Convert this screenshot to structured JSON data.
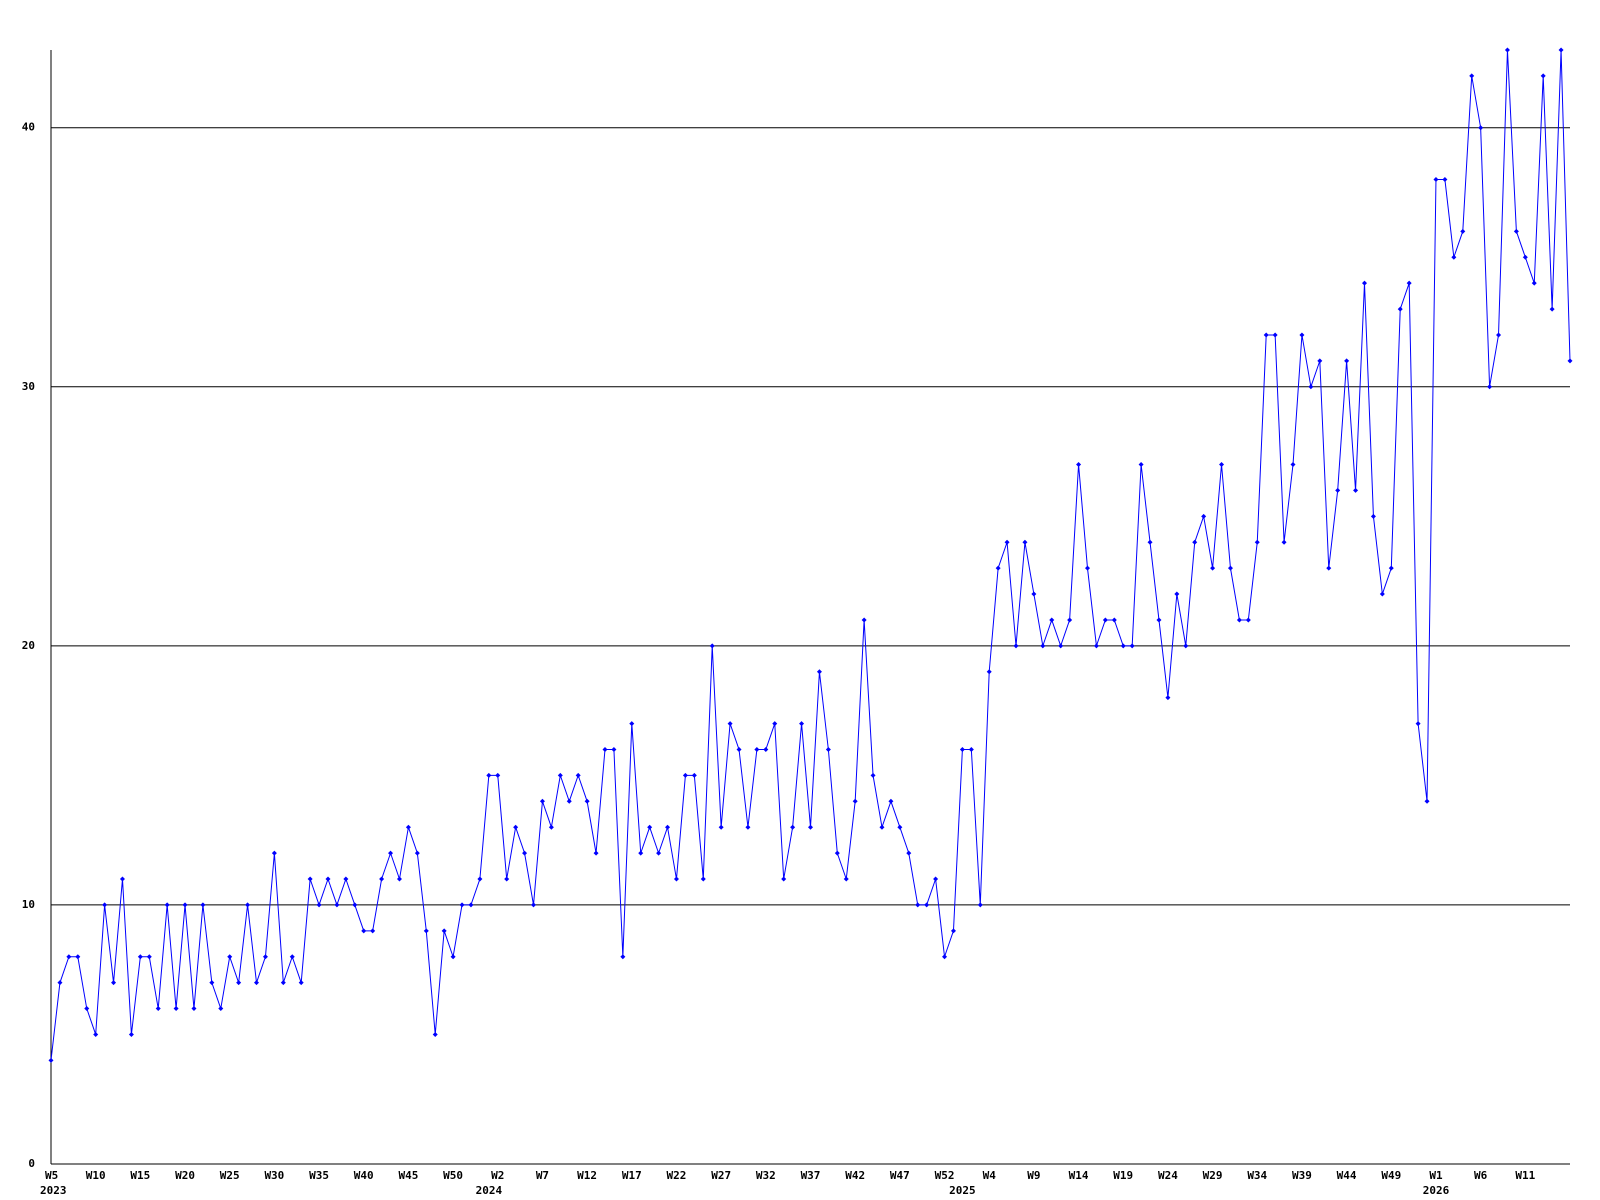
{
  "chart_data": {
    "type": "line",
    "color": "#0000ff",
    "grid": true,
    "ylim": [
      0,
      43
    ],
    "yticks": [
      0,
      10,
      20,
      30,
      40
    ],
    "categories": [
      "W5",
      null,
      null,
      null,
      null,
      "W10",
      null,
      null,
      null,
      null,
      "W15",
      null,
      null,
      null,
      null,
      "W20",
      null,
      null,
      null,
      null,
      "W25",
      null,
      null,
      null,
      null,
      "W30",
      null,
      null,
      null,
      null,
      "W35",
      null,
      null,
      null,
      null,
      "W40",
      null,
      null,
      null,
      null,
      "W45",
      null,
      null,
      null,
      null,
      "W50",
      null,
      null,
      null,
      null,
      "W2",
      null,
      null,
      null,
      null,
      "W7",
      null,
      null,
      null,
      null,
      "W12",
      null,
      null,
      null,
      null,
      "W17",
      null,
      null,
      null,
      null,
      "W22",
      null,
      null,
      null,
      null,
      "W27",
      null,
      null,
      null,
      null,
      "W32",
      null,
      null,
      null,
      null,
      "W37",
      null,
      null,
      null,
      null,
      "W42",
      null,
      null,
      null,
      null,
      "W47",
      null,
      null,
      null,
      null,
      "W52",
      null,
      null,
      null,
      null,
      "W4",
      null,
      null,
      null,
      null,
      "W9",
      null,
      null,
      null,
      null,
      "W14",
      null,
      null,
      null,
      null,
      "W19",
      null,
      null,
      null,
      null,
      "W24",
      null,
      null,
      null,
      null,
      "W29",
      null,
      null,
      null,
      null,
      "W34",
      null,
      null,
      null,
      null,
      "W39",
      null,
      null,
      null,
      null,
      "W44",
      null,
      null,
      null,
      null,
      "W49",
      null,
      null,
      null,
      null,
      "W1",
      null,
      null,
      null,
      null,
      "W6",
      null,
      null,
      null,
      null,
      "W11",
      null,
      null,
      null,
      null,
      null
    ],
    "category_years": [
      "2023",
      null,
      null,
      null,
      null,
      null,
      null,
      null,
      null,
      null,
      null,
      null,
      null,
      null,
      null,
      null,
      null,
      null,
      null,
      null,
      null,
      null,
      null,
      null,
      null,
      null,
      null,
      null,
      null,
      null,
      null,
      null,
      null,
      null,
      null,
      null,
      null,
      null,
      null,
      null,
      null,
      null,
      null,
      null,
      null,
      null,
      null,
      null,
      null,
      "2024",
      null,
      null,
      null,
      null,
      null,
      null,
      null,
      null,
      null,
      null,
      null,
      null,
      null,
      null,
      null,
      null,
      null,
      null,
      null,
      null,
      null,
      null,
      null,
      null,
      null,
      null,
      null,
      null,
      null,
      null,
      null,
      null,
      null,
      null,
      null,
      null,
      null,
      null,
      null,
      null,
      null,
      null,
      null,
      null,
      null,
      null,
      null,
      null,
      null,
      null,
      null,
      null,
      "2025",
      null,
      null,
      null,
      null,
      null,
      null,
      null,
      null,
      null,
      null,
      null,
      null,
      null,
      null,
      null,
      null,
      null,
      null,
      null,
      null,
      null,
      null,
      null,
      null,
      null,
      null,
      null,
      null,
      null,
      null,
      null,
      null,
      null,
      null,
      null,
      null,
      null,
      null,
      null,
      null,
      null,
      null,
      null,
      null,
      null,
      null,
      null,
      null,
      null,
      null,
      null,
      null,
      "2026",
      null,
      null,
      null,
      null,
      null,
      null,
      null,
      null,
      null,
      null,
      null,
      null,
      null,
      null,
      null
    ],
    "values": [
      4,
      7,
      8,
      8,
      6,
      5,
      10,
      7,
      11,
      5,
      8,
      8,
      6,
      10,
      6,
      10,
      6,
      10,
      7,
      6,
      8,
      7,
      10,
      7,
      8,
      12,
      7,
      8,
      7,
      11,
      10,
      11,
      10,
      11,
      10,
      9,
      9,
      11,
      12,
      11,
      13,
      12,
      9,
      5,
      9,
      8,
      10,
      10,
      11,
      15,
      15,
      11,
      13,
      12,
      10,
      14,
      13,
      15,
      14,
      15,
      14,
      12,
      16,
      16,
      8,
      17,
      12,
      13,
      12,
      13,
      11,
      15,
      15,
      11,
      20,
      13,
      17,
      16,
      13,
      16,
      16,
      17,
      11,
      13,
      17,
      13,
      19,
      16,
      12,
      11,
      14,
      21,
      15,
      13,
      14,
      13,
      12,
      10,
      10,
      11,
      8,
      9,
      16,
      16,
      10,
      19,
      23,
      24,
      20,
      24,
      22,
      20,
      21,
      20,
      21,
      27,
      23,
      20,
      21,
      21,
      20,
      20,
      27,
      24,
      21,
      18,
      22,
      20,
      24,
      25,
      23,
      27,
      23,
      21,
      21,
      24,
      32,
      32,
      24,
      27,
      32,
      30,
      31,
      23,
      26,
      31,
      26,
      34,
      25,
      22,
      23,
      33,
      34,
      17,
      14,
      38,
      38,
      35,
      36,
      42,
      40,
      30,
      32,
      43,
      36,
      35,
      34,
      42,
      33,
      43,
      31
    ]
  }
}
